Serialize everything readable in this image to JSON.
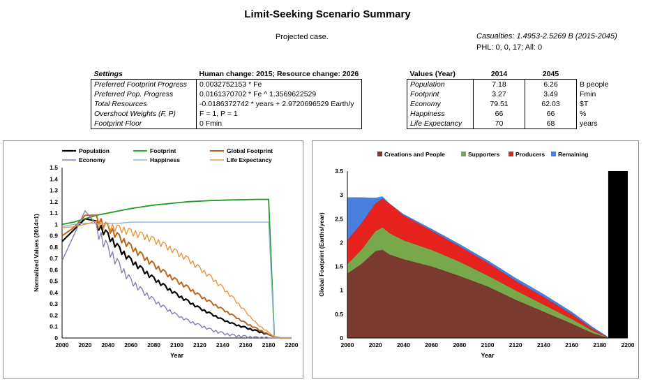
{
  "title": "Limit-Seeking Scenario Summary",
  "case_label": "Projected case.",
  "casualties": "Casualties: 1.4953-2.5269 B (2015-2045)",
  "phl": "PHL: 0, 0, 17; All: 0",
  "settings": {
    "header_label": "Settings",
    "header_value": "Human change: 2015; Resource change: 2026",
    "rows": [
      {
        "label": "Preferred Footprint Progress",
        "value": "0.0032752153 * Fe"
      },
      {
        "label": "Preferred Pop. Progress",
        "value": "0.0161370702 * Fe ^ 1.3569622529"
      },
      {
        "label": "Total Resources",
        "value": "-0.0186372742 * years + 2.9720696529 Earth/y"
      },
      {
        "label": "Overshoot Weights (F, P)",
        "value": "F = 1, P = 1"
      },
      {
        "label": "Footprint Floor",
        "value": "0 Fmin"
      }
    ]
  },
  "values_table": {
    "header_label": "Values (Year)",
    "col1": "2014",
    "col2": "2045",
    "rows": [
      {
        "label": "Population",
        "v2014": "7.18",
        "v2045": "6.26",
        "unit": "B people"
      },
      {
        "label": "Footprint",
        "v2014": "3.27",
        "v2045": "3.49",
        "unit": "Fmin"
      },
      {
        "label": "Economy",
        "v2014": "79.51",
        "v2045": "62.03",
        "unit": "$T"
      },
      {
        "label": "Happiness",
        "v2014": "66",
        "v2045": "66",
        "unit": "%"
      },
      {
        "label": "Life Expectancy",
        "v2014": "70",
        "v2045": "68",
        "unit": "years"
      }
    ]
  },
  "chart_data": [
    {
      "type": "line",
      "title": "",
      "xlabel": "Year",
      "ylabel": "Normalized Values (2014=1)",
      "xlim": [
        2000,
        2200
      ],
      "ylim": [
        0,
        1.5
      ],
      "x_ticks": [
        "2000",
        "2020",
        "2040",
        "2060",
        "2080",
        "2100",
        "2120",
        "2140",
        "2160",
        "2180",
        "2200"
      ],
      "y_ticks": [
        "0",
        "0.1",
        "0.2",
        "0.3",
        "0.4",
        "0.5",
        "0.6",
        "0.7",
        "0.8",
        "0.9",
        "1",
        "1.1",
        "1.2",
        "1.3",
        "1.4",
        "1.5"
      ],
      "x": [
        2000,
        2010,
        2020,
        2030,
        2040,
        2050,
        2060,
        2070,
        2080,
        2090,
        2100,
        2110,
        2120,
        2130,
        2140,
        2150,
        2160,
        2170,
        2180,
        2185,
        2190,
        2200
      ],
      "series": [
        {
          "name": "Population",
          "color": "#000000",
          "width": 2.2,
          "values": [
            0.85,
            0.95,
            1.05,
            1.0,
            0.9,
            0.78,
            0.68,
            0.6,
            0.52,
            0.45,
            0.38,
            0.32,
            0.26,
            0.21,
            0.16,
            0.12,
            0.09,
            0.06,
            0.03,
            0.01,
            0,
            0
          ]
        },
        {
          "name": "Footprint",
          "color": "#1e9a1e",
          "width": 1.8,
          "values": [
            1.0,
            1.02,
            1.05,
            1.08,
            1.1,
            1.12,
            1.14,
            1.155,
            1.17,
            1.18,
            1.19,
            1.2,
            1.205,
            1.21,
            1.213,
            1.216,
            1.218,
            1.22,
            1.22,
            0,
            0,
            0
          ]
        },
        {
          "name": "Global Footprint",
          "color": "#b8651a",
          "width": 2.0,
          "values": [
            0.9,
            0.97,
            1.08,
            1.05,
            0.97,
            0.88,
            0.8,
            0.72,
            0.64,
            0.57,
            0.5,
            0.44,
            0.37,
            0.31,
            0.25,
            0.19,
            0.13,
            0.08,
            0.03,
            0.01,
            0,
            0
          ]
        },
        {
          "name": "Economy",
          "color": "#8a7ab0",
          "width": 1.4,
          "values": [
            0.68,
            0.9,
            1.12,
            0.95,
            0.78,
            0.63,
            0.5,
            0.41,
            0.33,
            0.26,
            0.2,
            0.15,
            0.11,
            0.07,
            0.04,
            0.02,
            0.01,
            0,
            0,
            0,
            0,
            0
          ]
        },
        {
          "name": "Happiness",
          "color": "#8cb4d8",
          "width": 1.4,
          "values": [
            0.98,
            1.0,
            1.01,
            1.01,
            1.01,
            1.01,
            1.02,
            1.02,
            1.02,
            1.02,
            1.02,
            1.02,
            1.02,
            1.02,
            1.02,
            1.02,
            1.02,
            1.02,
            1.02,
            0,
            0,
            0
          ]
        },
        {
          "name": "Life Expectancy",
          "color": "#e8963a",
          "width": 1.4,
          "values": [
            0.97,
            0.98,
            1.0,
            1.0,
            0.98,
            0.96,
            0.93,
            0.9,
            0.86,
            0.81,
            0.75,
            0.69,
            0.61,
            0.53,
            0.44,
            0.34,
            0.23,
            0.12,
            0.05,
            0.01,
            0,
            0
          ]
        }
      ]
    },
    {
      "type": "area",
      "title": "",
      "xlabel": "Year",
      "ylabel": "Global Footprint (Earths/year)",
      "xlim": [
        2000,
        2200
      ],
      "ylim": [
        0,
        3.5
      ],
      "background": "#000000",
      "x_ticks": [
        "2000",
        "2020",
        "2040",
        "2060",
        "2080",
        "2100",
        "2120",
        "2140",
        "2160",
        "2180",
        "2200"
      ],
      "y_ticks": [
        "0",
        "0.5",
        "1",
        "1.5",
        "2",
        "2.5",
        "3",
        "3.5"
      ],
      "x": [
        2000,
        2010,
        2020,
        2025,
        2030,
        2040,
        2060,
        2080,
        2100,
        2120,
        2140,
        2160,
        2175,
        2185,
        2186
      ],
      "series": [
        {
          "name": "Creations and People",
          "color": "#7b3a30",
          "values": [
            1.35,
            1.55,
            1.82,
            1.85,
            1.75,
            1.65,
            1.5,
            1.3,
            1.08,
            0.8,
            0.55,
            0.3,
            0.1,
            0.01,
            0
          ]
        },
        {
          "name": "Supporters",
          "color": "#79a84a",
          "values": [
            0.2,
            0.3,
            0.42,
            0.47,
            0.45,
            0.4,
            0.35,
            0.3,
            0.23,
            0.2,
            0.15,
            0.1,
            0.05,
            0.01,
            0
          ]
        },
        {
          "name": "Producers",
          "color": "#e8231f",
          "values": [
            0.5,
            0.55,
            0.58,
            0.6,
            0.62,
            0.52,
            0.4,
            0.32,
            0.27,
            0.2,
            0.16,
            0.1,
            0.04,
            0.01,
            0
          ]
        },
        {
          "name": "Remaining",
          "color": "#4a7fe0",
          "values": [
            0.9,
            0.55,
            0.12,
            0.05,
            0.0,
            0.03,
            0.04,
            0.05,
            0.05,
            0.06,
            0.06,
            0.05,
            0.04,
            0.01,
            0
          ]
        }
      ]
    }
  ]
}
